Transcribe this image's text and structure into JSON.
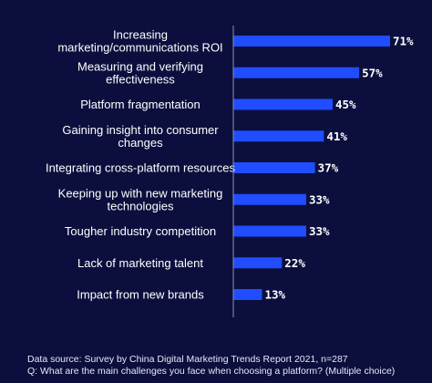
{
  "chart_data": {
    "type": "bar",
    "orientation": "horizontal",
    "categories": [
      [
        "Increasing",
        "marketing/communications ROI"
      ],
      [
        "Measuring and verifying",
        "effectiveness"
      ],
      [
        "Platform fragmentation"
      ],
      [
        "Gaining insight into consumer",
        "changes"
      ],
      [
        "Integrating cross-platform resources"
      ],
      [
        "Keeping up with new marketing",
        "technologies"
      ],
      [
        "Tougher industry competition"
      ],
      [
        "Lack of marketing talent"
      ],
      [
        "Impact from new brands"
      ]
    ],
    "values": [
      71,
      57,
      45,
      41,
      37,
      33,
      33,
      22,
      13
    ],
    "value_labels": [
      "71%",
      "57%",
      "45%",
      "41%",
      "37%",
      "33%",
      "33%",
      "22%",
      "13%"
    ],
    "xlim": [
      0,
      71
    ],
    "grid": false,
    "legend": "none",
    "bar_color": "#1f4dff",
    "background_color": "#0c0f3d",
    "text_color": "#ffffff"
  },
  "footnotes": {
    "source": "Data source: Survey by China Digital Marketing Trends Report 2021, n=287",
    "question": "Q: What are the main challenges you face when choosing a platform? (Multiple choice)"
  }
}
